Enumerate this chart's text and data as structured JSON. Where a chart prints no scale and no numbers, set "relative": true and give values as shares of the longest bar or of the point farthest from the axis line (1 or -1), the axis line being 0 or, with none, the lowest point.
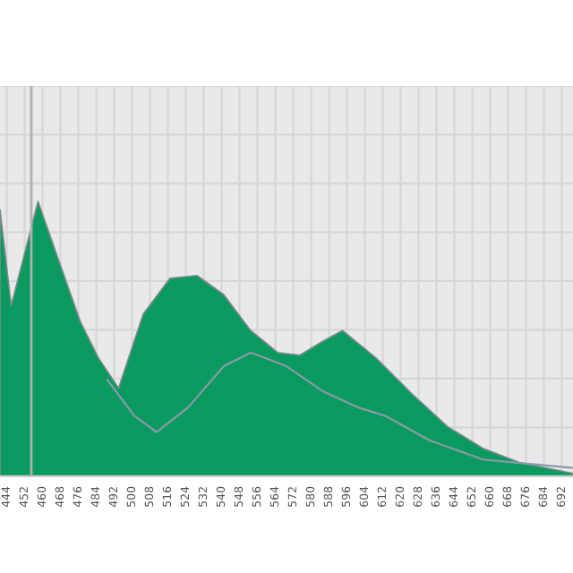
{
  "chart_data": {
    "type": "area",
    "relative": true,
    "grid": true,
    "x": [
      441,
      446,
      458,
      467,
      477,
      485,
      494,
      505,
      517,
      529,
      541,
      553,
      565,
      575,
      585,
      594,
      609,
      625,
      641,
      657,
      673,
      697
    ],
    "xlim": [
      441,
      697
    ],
    "xticks": [
      444,
      452,
      460,
      468,
      476,
      484,
      492,
      500,
      508,
      516,
      524,
      532,
      540,
      548,
      556,
      564,
      572,
      580,
      588,
      596,
      604,
      612,
      620,
      628,
      636,
      644,
      652,
      660,
      668,
      676,
      684,
      692
    ],
    "series": [
      {
        "values": [
          0.97,
          0.62,
          1.0,
          0.79,
          0.56,
          0.43,
          0.32,
          0.59,
          0.72,
          0.73,
          0.66,
          0.53,
          0.45,
          0.44,
          0.49,
          0.53,
          0.43,
          0.3,
          0.18,
          0.1,
          0.05,
          0.01
        ],
        "color": "#0a9a60"
      },
      {
        "type": "line",
        "color": "#8a9aa8",
        "x": [
          489,
          501,
          511,
          525,
          541,
          553,
          569,
          585,
          601,
          613,
          633,
          657,
          697
        ],
        "values": [
          0.35,
          0.22,
          0.16,
          0.25,
          0.4,
          0.45,
          0.4,
          0.31,
          0.25,
          0.22,
          0.13,
          0.06,
          0.03
        ]
      }
    ],
    "ref_lines": [
      {
        "axis": "x",
        "value": 455,
        "color": "#b0b0b0"
      }
    ]
  }
}
